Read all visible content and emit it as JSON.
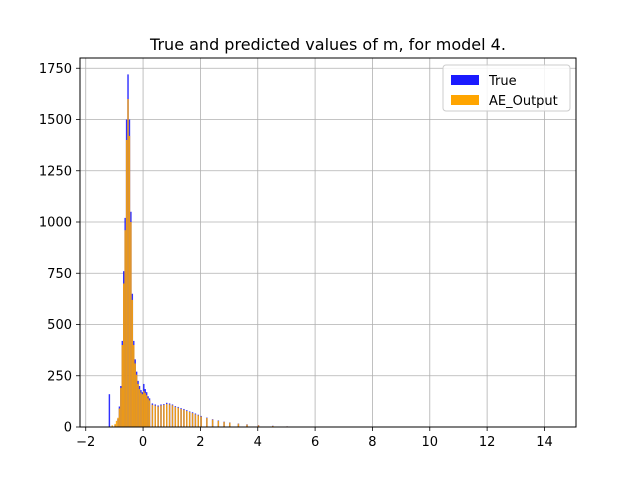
{
  "chart_data": {
    "type": "bar",
    "title": "True and predicted values of m, for model 4.",
    "xlabel": "",
    "ylabel": "",
    "xlim": [
      -2.2,
      15.1
    ],
    "ylim": [
      0,
      1800
    ],
    "xticks": [
      -2,
      0,
      2,
      4,
      6,
      8,
      10,
      12,
      14
    ],
    "xtick_labels": [
      "−2",
      "0",
      "2",
      "4",
      "6",
      "8",
      "10",
      "12",
      "14"
    ],
    "yticks": [
      0,
      250,
      500,
      750,
      1000,
      1250,
      1500,
      1750
    ],
    "ytick_labels": [
      "0",
      "250",
      "500",
      "750",
      "1000",
      "1250",
      "1500",
      "1750"
    ],
    "grid": true,
    "legend_position": "top-right",
    "bin_width": 0.05,
    "series": [
      {
        "name": "True",
        "color": "#1a1aff",
        "bins": [
          [
            -1.2,
            160
          ],
          [
            -1.0,
            10
          ],
          [
            -0.9,
            40
          ],
          [
            -0.85,
            100
          ],
          [
            -0.8,
            200
          ],
          [
            -0.75,
            420
          ],
          [
            -0.7,
            760
          ],
          [
            -0.65,
            1020
          ],
          [
            -0.6,
            1500
          ],
          [
            -0.55,
            1720
          ],
          [
            -0.5,
            1500
          ],
          [
            -0.45,
            1050
          ],
          [
            -0.4,
            650
          ],
          [
            -0.35,
            420
          ],
          [
            -0.3,
            330
          ],
          [
            -0.25,
            270
          ],
          [
            -0.2,
            225
          ],
          [
            -0.15,
            200
          ],
          [
            -0.1,
            180
          ],
          [
            -0.05,
            170
          ],
          [
            0.0,
            210
          ],
          [
            0.05,
            185
          ],
          [
            0.1,
            170
          ],
          [
            0.15,
            150
          ],
          [
            0.2,
            140
          ],
          [
            0.3,
            115
          ],
          [
            0.4,
            110
          ],
          [
            0.5,
            105
          ],
          [
            0.6,
            110
          ],
          [
            0.7,
            112
          ],
          [
            0.8,
            118
          ],
          [
            0.9,
            115
          ],
          [
            1.0,
            110
          ],
          [
            1.1,
            102
          ],
          [
            1.2,
            98
          ],
          [
            1.3,
            92
          ],
          [
            1.4,
            88
          ],
          [
            1.5,
            82
          ],
          [
            1.6,
            76
          ],
          [
            1.7,
            72
          ],
          [
            1.8,
            66
          ],
          [
            1.9,
            60
          ],
          [
            2.0,
            54
          ],
          [
            2.2,
            46
          ],
          [
            2.4,
            38
          ],
          [
            2.6,
            32
          ],
          [
            2.8,
            26
          ],
          [
            3.0,
            22
          ],
          [
            3.3,
            17
          ],
          [
            3.6,
            13
          ],
          [
            4.0,
            9
          ],
          [
            4.5,
            6
          ],
          [
            5.0,
            3
          ],
          [
            6.0,
            2
          ],
          [
            7.5,
            1
          ]
        ]
      },
      {
        "name": "AE_Output",
        "color": "#ffa500",
        "bins": [
          [
            -1.1,
            8
          ],
          [
            -1.0,
            15
          ],
          [
            -0.95,
            30
          ],
          [
            -0.9,
            45
          ],
          [
            -0.85,
            90
          ],
          [
            -0.8,
            190
          ],
          [
            -0.75,
            400
          ],
          [
            -0.7,
            700
          ],
          [
            -0.65,
            960
          ],
          [
            -0.6,
            1400
          ],
          [
            -0.55,
            1600
          ],
          [
            -0.5,
            1420
          ],
          [
            -0.45,
            1000
          ],
          [
            -0.4,
            620
          ],
          [
            -0.35,
            400
          ],
          [
            -0.3,
            310
          ],
          [
            -0.25,
            255
          ],
          [
            -0.2,
            210
          ],
          [
            -0.15,
            185
          ],
          [
            -0.1,
            168
          ],
          [
            -0.05,
            160
          ],
          [
            0.0,
            175
          ],
          [
            0.05,
            165
          ],
          [
            0.1,
            155
          ],
          [
            0.15,
            140
          ],
          [
            0.2,
            130
          ],
          [
            0.3,
            108
          ],
          [
            0.4,
            104
          ],
          [
            0.5,
            100
          ],
          [
            0.6,
            105
          ],
          [
            0.7,
            108
          ],
          [
            0.8,
            112
          ],
          [
            0.9,
            110
          ],
          [
            1.0,
            106
          ],
          [
            1.1,
            98
          ],
          [
            1.2,
            94
          ],
          [
            1.3,
            88
          ],
          [
            1.4,
            84
          ],
          [
            1.5,
            78
          ],
          [
            1.6,
            73
          ],
          [
            1.7,
            68
          ],
          [
            1.8,
            62
          ],
          [
            1.9,
            57
          ],
          [
            2.0,
            51
          ],
          [
            2.2,
            44
          ],
          [
            2.4,
            36
          ],
          [
            2.6,
            30
          ],
          [
            2.8,
            25
          ],
          [
            3.0,
            21
          ],
          [
            3.3,
            16
          ],
          [
            3.6,
            12
          ],
          [
            4.0,
            8
          ],
          [
            4.5,
            5
          ],
          [
            5.0,
            3
          ],
          [
            6.0,
            2
          ],
          [
            7.5,
            1
          ]
        ]
      }
    ]
  }
}
